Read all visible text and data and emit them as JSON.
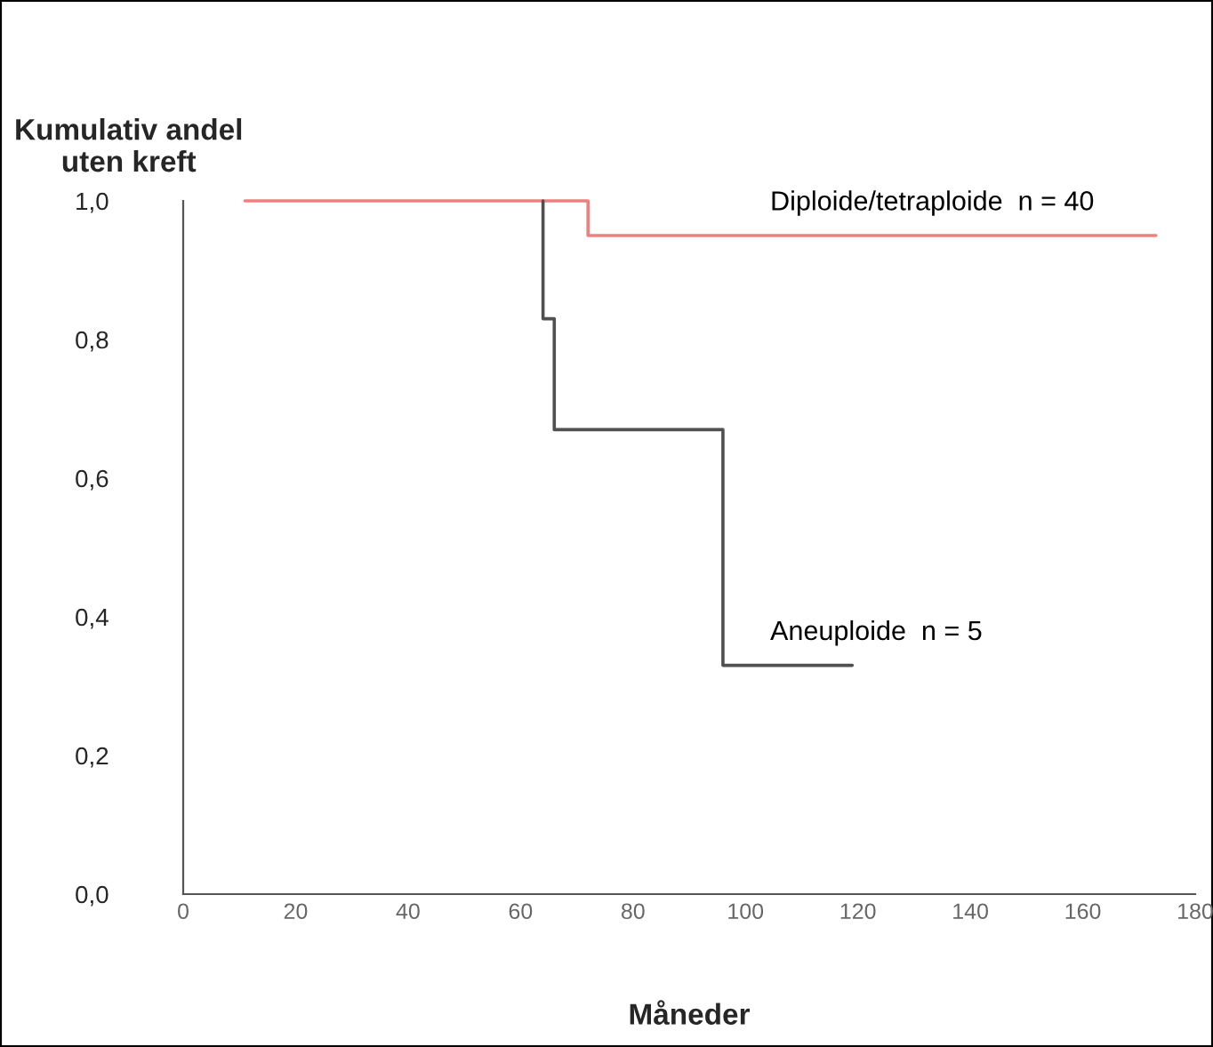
{
  "chart_data": {
    "type": "step",
    "ylabel": "Kumulativ andel\nuten kreft",
    "xlabel": "Måneder",
    "series": [
      {
        "name": "Diploide/tetraploide  n = 40",
        "color": "#f08080",
        "x": [
          11,
          72,
          72,
          173
        ],
        "values": [
          1.0,
          1.0,
          0.95,
          0.95
        ]
      },
      {
        "name": "Aneuploide  n = 5",
        "color": "#505050",
        "x": [
          64,
          64,
          66,
          66,
          96,
          96,
          119
        ],
        "values": [
          1.0,
          0.83,
          0.83,
          0.67,
          0.67,
          0.33,
          0.33
        ]
      }
    ],
    "xlim": [
      0,
      180
    ],
    "xticks": [
      0,
      20,
      40,
      60,
      80,
      100,
      120,
      140,
      160,
      180
    ],
    "ylim": [
      0,
      1.0
    ],
    "yticks": [
      {
        "value": 0,
        "label": "0,0"
      },
      {
        "value": 0.2,
        "label": "0,2"
      },
      {
        "value": 0.4,
        "label": "0,4"
      },
      {
        "value": 0.6,
        "label": "0,6"
      },
      {
        "value": 0.8,
        "label": "0,8"
      },
      {
        "value": 1.0,
        "label": "1,0"
      }
    ],
    "grid": false,
    "legend": false
  }
}
